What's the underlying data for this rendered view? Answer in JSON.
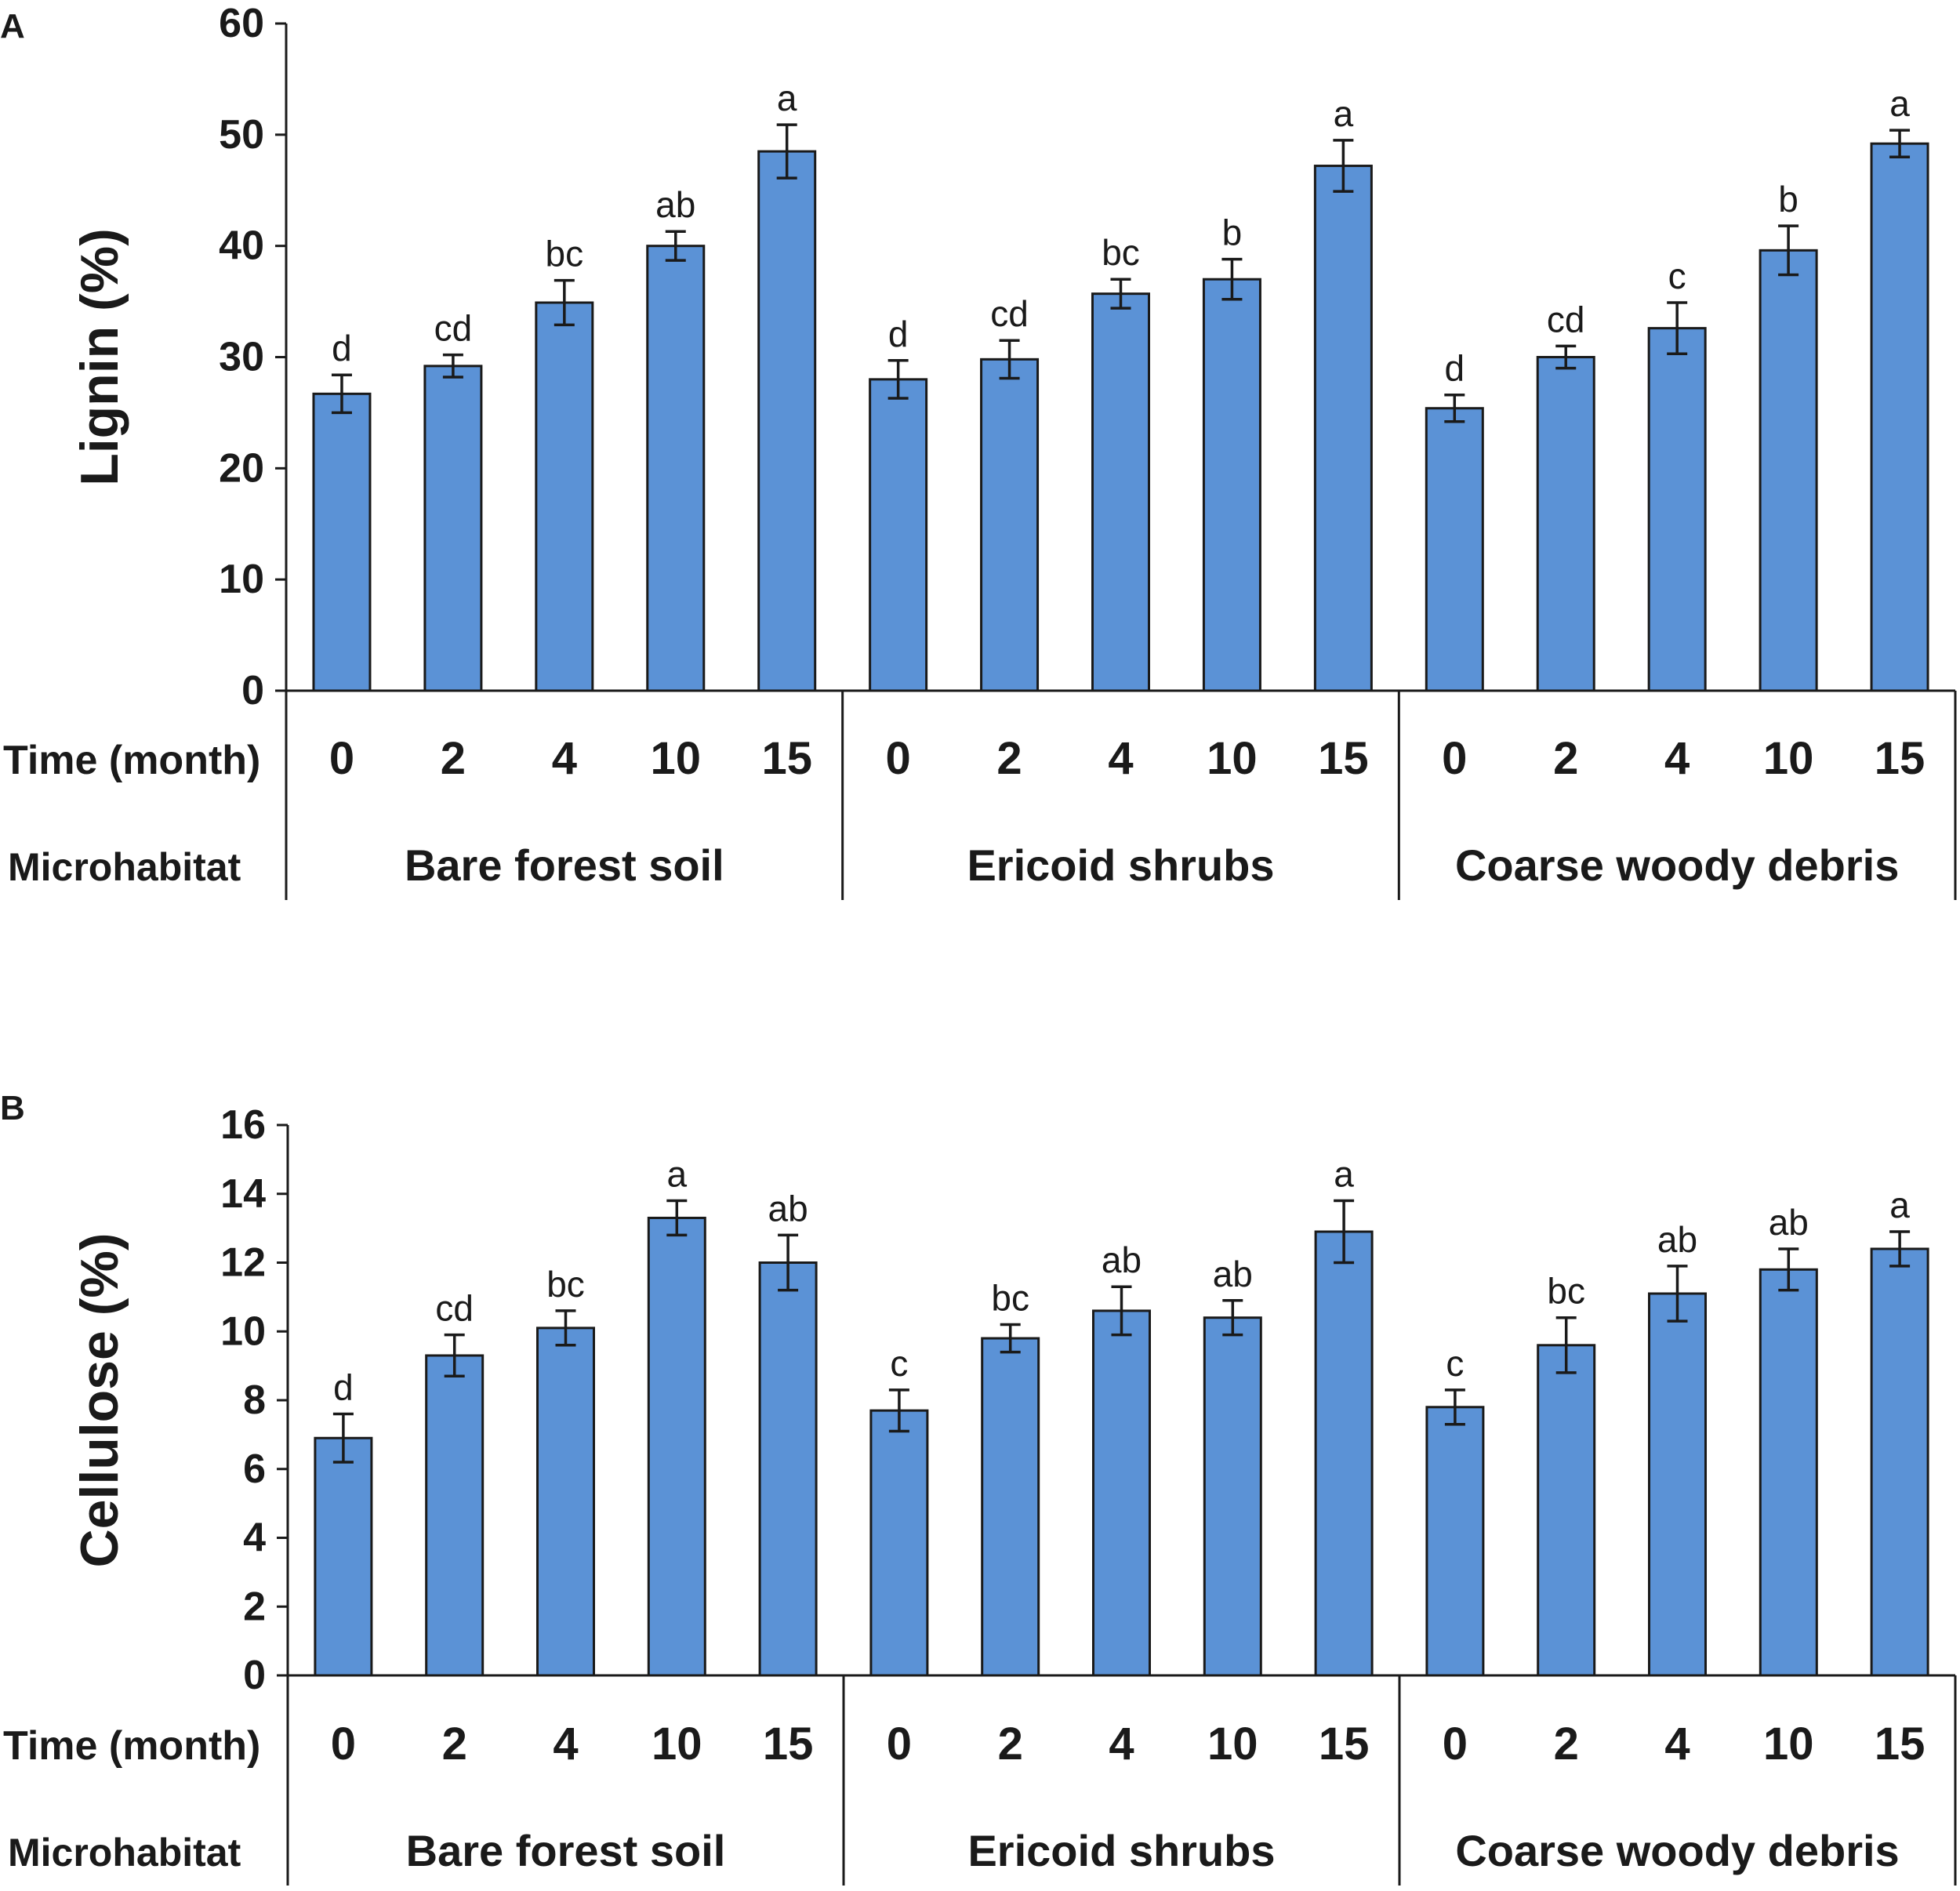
{
  "chart_data": [
    {
      "type": "bar",
      "panel_label": "A",
      "ylabel": "Lignin (%)",
      "ylim": [
        0,
        60
      ],
      "yticks": [
        0,
        10,
        20,
        30,
        40,
        50,
        60
      ],
      "row_labels": {
        "time": "Time (month)",
        "microhabitat": "Microhabitat"
      },
      "groups": [
        "Bare forest soil",
        "Ericoid shrubs",
        "Coarse woody debris"
      ],
      "times": [
        "0",
        "2",
        "4",
        "10",
        "15"
      ],
      "bar_color": "#5b92d6",
      "values": [
        26.7,
        29.2,
        34.9,
        40.0,
        48.5,
        28.0,
        29.8,
        35.7,
        37.0,
        47.2,
        25.4,
        30.0,
        32.6,
        39.6,
        49.2
      ],
      "errors": [
        1.7,
        1.0,
        2.0,
        1.3,
        2.4,
        1.7,
        1.7,
        1.3,
        1.8,
        2.3,
        1.2,
        1.0,
        2.3,
        2.2,
        1.2
      ],
      "letters": [
        "d",
        "cd",
        "bc",
        "ab",
        "a",
        "d",
        "cd",
        "bc",
        "b",
        "a",
        "d",
        "cd",
        "c",
        "b",
        "a"
      ]
    },
    {
      "type": "bar",
      "panel_label": "B",
      "ylabel": "Cellulose (%)",
      "ylim": [
        0,
        16
      ],
      "yticks": [
        0,
        2,
        4,
        6,
        8,
        10,
        12,
        14,
        16
      ],
      "row_labels": {
        "time": "Time (month)",
        "microhabitat": "Microhabitat"
      },
      "groups": [
        "Bare forest soil",
        "Ericoid shrubs",
        "Coarse woody debris"
      ],
      "times": [
        "0",
        "2",
        "4",
        "10",
        "15"
      ],
      "bar_color": "#5b92d6",
      "values": [
        6.9,
        9.3,
        10.1,
        13.3,
        12.0,
        7.7,
        9.8,
        10.6,
        10.4,
        12.9,
        7.8,
        9.6,
        11.1,
        11.8,
        12.4
      ],
      "errors": [
        0.7,
        0.6,
        0.5,
        0.5,
        0.8,
        0.6,
        0.4,
        0.7,
        0.5,
        0.9,
        0.5,
        0.8,
        0.8,
        0.6,
        0.5
      ],
      "letters": [
        "d",
        "cd",
        "bc",
        "a",
        "ab",
        "c",
        "bc",
        "ab",
        "ab",
        "a",
        "c",
        "bc",
        "ab",
        "ab",
        "a"
      ]
    }
  ]
}
